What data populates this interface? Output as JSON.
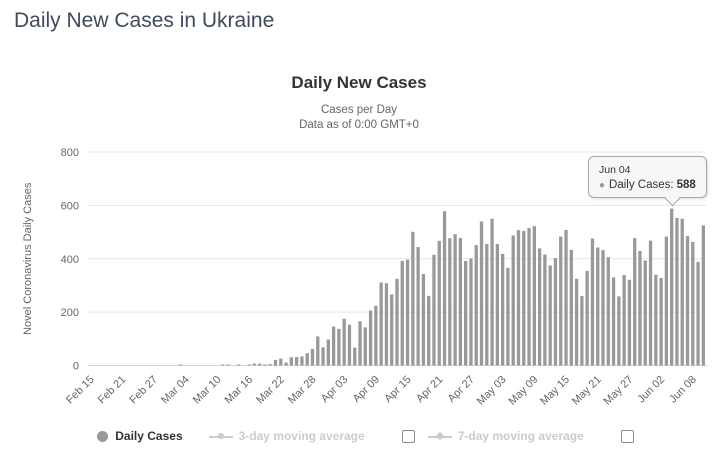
{
  "page_title": "Daily New Cases in Ukraine",
  "chart": {
    "title": "Daily New Cases",
    "subtitle_line1": "Cases per Day",
    "subtitle_line2": "Data as of 0:00 GMT+0",
    "y_axis_title": "Novel Coronavirus Daily Cases"
  },
  "tooltip": {
    "date": "Jun 04",
    "series_label": "Daily Cases:",
    "value": "588",
    "point_index": 110
  },
  "legend": [
    {
      "label": "Daily Cases",
      "marker": "circle",
      "active": true,
      "has_checkbox": false
    },
    {
      "label": "3-day moving average",
      "marker": "line-circle",
      "active": false,
      "has_checkbox": true,
      "checkbox_checked": false
    },
    {
      "label": "7-day moving average",
      "marker": "line-diamond",
      "active": false,
      "has_checkbox": true,
      "checkbox_checked": false
    }
  ],
  "colors": {
    "bar": "#999999",
    "page_title": "#3d4b5c",
    "chart_title": "#333333",
    "subtitle": "#666666",
    "axis_label": "#666666",
    "gridline": "#e6e6e6",
    "axis_line": "#ccd6eb",
    "legend_active": "#333333",
    "legend_disabled": "#cccccc"
  },
  "chart_data": {
    "type": "bar",
    "title": "Daily New Cases",
    "xlabel": "",
    "ylabel": "Novel Coronavirus Daily Cases",
    "ylim": [
      0,
      800
    ],
    "yticks": [
      0,
      200,
      400,
      600,
      800
    ],
    "grid": true,
    "legend_position": "bottom",
    "x_tick_every": 6,
    "x_tick_labels_visible": [
      "Feb 15",
      "Feb 21",
      "Feb 27",
      "Mar 04",
      "Mar 10",
      "Mar 16",
      "Mar 22",
      "Mar 28",
      "Apr 03",
      "Apr 09",
      "Apr 15",
      "Apr 21",
      "Apr 27",
      "May 03",
      "May 09",
      "May 15",
      "May 21",
      "May 27",
      "Jun 02",
      "Jun 08"
    ],
    "x": [
      "Feb 15",
      "Feb 16",
      "Feb 17",
      "Feb 18",
      "Feb 19",
      "Feb 20",
      "Feb 21",
      "Feb 22",
      "Feb 23",
      "Feb 24",
      "Feb 25",
      "Feb 26",
      "Feb 27",
      "Feb 28",
      "Feb 29",
      "Mar 01",
      "Mar 02",
      "Mar 03",
      "Mar 04",
      "Mar 05",
      "Mar 06",
      "Mar 07",
      "Mar 08",
      "Mar 09",
      "Mar 10",
      "Mar 11",
      "Mar 12",
      "Mar 13",
      "Mar 14",
      "Mar 15",
      "Mar 16",
      "Mar 17",
      "Mar 18",
      "Mar 19",
      "Mar 20",
      "Mar 21",
      "Mar 22",
      "Mar 23",
      "Mar 24",
      "Mar 25",
      "Mar 26",
      "Mar 27",
      "Mar 28",
      "Mar 29",
      "Mar 30",
      "Mar 31",
      "Apr 01",
      "Apr 02",
      "Apr 03",
      "Apr 04",
      "Apr 05",
      "Apr 06",
      "Apr 07",
      "Apr 08",
      "Apr 09",
      "Apr 10",
      "Apr 11",
      "Apr 12",
      "Apr 13",
      "Apr 14",
      "Apr 15",
      "Apr 16",
      "Apr 17",
      "Apr 18",
      "Apr 19",
      "Apr 20",
      "Apr 21",
      "Apr 22",
      "Apr 23",
      "Apr 24",
      "Apr 25",
      "Apr 26",
      "Apr 27",
      "Apr 28",
      "Apr 29",
      "Apr 30",
      "May 01",
      "May 02",
      "May 03",
      "May 04",
      "May 05",
      "May 06",
      "May 07",
      "May 08",
      "May 09",
      "May 10",
      "May 11",
      "May 12",
      "May 13",
      "May 14",
      "May 15",
      "May 16",
      "May 17",
      "May 18",
      "May 19",
      "May 20",
      "May 21",
      "May 22",
      "May 23",
      "May 24",
      "May 25",
      "May 26",
      "May 27",
      "May 28",
      "May 29",
      "May 30",
      "May 31",
      "Jun 01",
      "Jun 02",
      "Jun 03",
      "Jun 04",
      "Jun 05",
      "Jun 06",
      "Jun 07",
      "Jun 08",
      "Jun 09",
      "Jun 10"
    ],
    "values": [
      0,
      0,
      0,
      0,
      0,
      0,
      0,
      0,
      0,
      0,
      0,
      0,
      0,
      0,
      0,
      0,
      0,
      1,
      0,
      0,
      0,
      0,
      0,
      0,
      0,
      1,
      1,
      0,
      1,
      0,
      3,
      7,
      7,
      2,
      5,
      21,
      26,
      11,
      31,
      32,
      34,
      46,
      62,
      109,
      68,
      97,
      146,
      137,
      175,
      153,
      67,
      166,
      143,
      206,
      224,
      311,
      308,
      266,
      325,
      392,
      397,
      501,
      444,
      343,
      261,
      415,
      467,
      578,
      477,
      492,
      478,
      392,
      401,
      451,
      540,
      455,
      550,
      455,
      418,
      366,
      487,
      507,
      504,
      515,
      522,
      439,
      416,
      375,
      402,
      483,
      508,
      433,
      325,
      260,
      354,
      476,
      442,
      432,
      406,
      330,
      259,
      339,
      321,
      477,
      429,
      393,
      468,
      340,
      328,
      483,
      588,
      553,
      550,
      485,
      463,
      388,
      525
    ]
  }
}
